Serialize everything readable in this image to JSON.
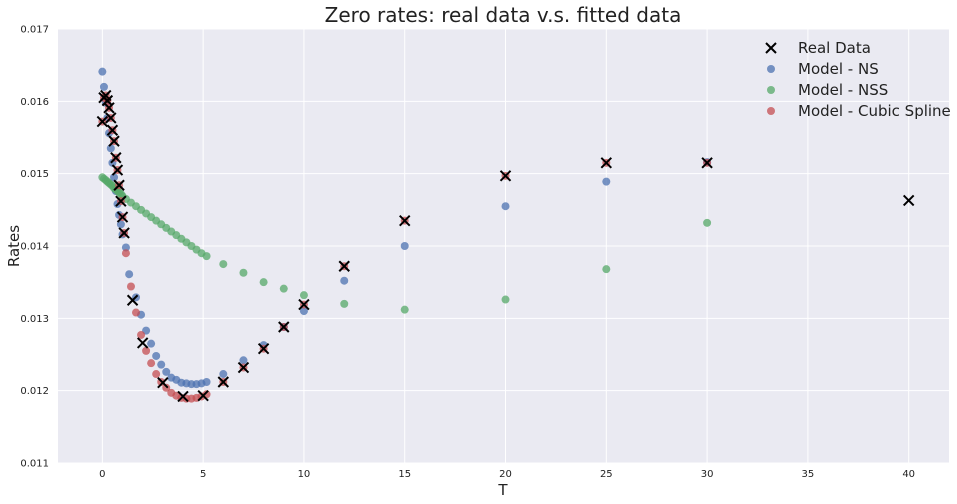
{
  "chart_data": {
    "type": "scatter",
    "title": "Zero rates: real data v.s. fitted data",
    "xlabel": "T",
    "ylabel": "Rates",
    "xlim": [
      -2.2,
      42
    ],
    "ylim": [
      0.011,
      0.017
    ],
    "xticks": [
      0,
      5,
      10,
      15,
      20,
      25,
      30,
      35,
      40
    ],
    "xtick_labels": [
      "0",
      "5",
      "10",
      "15",
      "20",
      "25",
      "30",
      "35",
      "40"
    ],
    "yticks": [
      0.011,
      0.012,
      0.013,
      0.014,
      0.015,
      0.016,
      0.017
    ],
    "ytick_labels": [
      "0.011",
      "0.012",
      "0.013",
      "0.014",
      "0.015",
      "0.016",
      "0.017"
    ],
    "grid": true,
    "legend_position": "top-right",
    "series": [
      {
        "name": "Real Data",
        "marker": "x",
        "color": "#000000",
        "points": [
          [
            0.0,
            0.01572
          ],
          [
            0.08,
            0.01605
          ],
          [
            0.17,
            0.01608
          ],
          [
            0.25,
            0.01601
          ],
          [
            0.33,
            0.01591
          ],
          [
            0.42,
            0.01577
          ],
          [
            0.5,
            0.0156
          ],
          [
            0.58,
            0.01545
          ],
          [
            0.67,
            0.01522
          ],
          [
            0.75,
            0.01505
          ],
          [
            0.83,
            0.01484
          ],
          [
            0.92,
            0.01462
          ],
          [
            1.0,
            0.0144
          ],
          [
            1.08,
            0.01418
          ],
          [
            1.5,
            0.01325
          ],
          [
            2.0,
            0.01266
          ],
          [
            3.0,
            0.01211
          ],
          [
            4.0,
            0.01192
          ],
          [
            5.0,
            0.01193
          ],
          [
            6.0,
            0.01212
          ],
          [
            7.0,
            0.01232
          ],
          [
            8.0,
            0.01258
          ],
          [
            9.0,
            0.01288
          ],
          [
            10.0,
            0.01319
          ],
          [
            12.0,
            0.01372
          ],
          [
            15.0,
            0.01435
          ],
          [
            20.0,
            0.01497
          ],
          [
            25.0,
            0.01515
          ],
          [
            30.0,
            0.01515
          ],
          [
            40.0,
            0.01463
          ]
        ]
      },
      {
        "name": "Model - NS",
        "marker": "o",
        "color": "#4c72b0",
        "points": [
          [
            0.0,
            0.01641
          ],
          [
            0.08,
            0.0162
          ],
          [
            0.17,
            0.01598
          ],
          [
            0.25,
            0.01577
          ],
          [
            0.33,
            0.01556
          ],
          [
            0.42,
            0.01535
          ],
          [
            0.5,
            0.01515
          ],
          [
            0.58,
            0.01495
          ],
          [
            0.67,
            0.01476
          ],
          [
            0.75,
            0.01458
          ],
          [
            0.83,
            0.01443
          ],
          [
            0.92,
            0.0143
          ],
          [
            1.0,
            0.01416
          ],
          [
            1.17,
            0.01398
          ],
          [
            1.33,
            0.01361
          ],
          [
            1.67,
            0.01329
          ],
          [
            1.92,
            0.01305
          ],
          [
            2.17,
            0.01283
          ],
          [
            2.42,
            0.01265
          ],
          [
            2.67,
            0.01248
          ],
          [
            2.92,
            0.01236
          ],
          [
            3.17,
            0.01226
          ],
          [
            3.42,
            0.01218
          ],
          [
            3.67,
            0.01215
          ],
          [
            3.92,
            0.01211
          ],
          [
            4.17,
            0.0121
          ],
          [
            4.42,
            0.01209
          ],
          [
            4.67,
            0.01209
          ],
          [
            4.92,
            0.0121
          ],
          [
            5.17,
            0.01212
          ],
          [
            6.0,
            0.01223
          ],
          [
            7.0,
            0.01242
          ],
          [
            8.0,
            0.01263
          ],
          [
            9.0,
            0.01288
          ],
          [
            10.0,
            0.0131
          ],
          [
            12.0,
            0.01352
          ],
          [
            15.0,
            0.014
          ],
          [
            20.0,
            0.01455
          ],
          [
            25.0,
            0.01489
          ],
          [
            30.0,
            0.01516
          ]
        ]
      },
      {
        "name": "Model - NSS",
        "marker": "o",
        "color": "#55a868",
        "points": [
          [
            0.0,
            0.01495
          ],
          [
            0.08,
            0.01493
          ],
          [
            0.17,
            0.01491
          ],
          [
            0.25,
            0.01489
          ],
          [
            0.33,
            0.01487
          ],
          [
            0.42,
            0.01485
          ],
          [
            0.5,
            0.01483
          ],
          [
            0.58,
            0.0148
          ],
          [
            0.67,
            0.01478
          ],
          [
            0.75,
            0.01476
          ],
          [
            0.83,
            0.01474
          ],
          [
            0.92,
            0.01472
          ],
          [
            1.0,
            0.01469
          ],
          [
            1.17,
            0.01465
          ],
          [
            1.42,
            0.0146
          ],
          [
            1.67,
            0.01455
          ],
          [
            1.92,
            0.0145
          ],
          [
            2.17,
            0.01445
          ],
          [
            2.42,
            0.0144
          ],
          [
            2.67,
            0.01435
          ],
          [
            2.92,
            0.0143
          ],
          [
            3.17,
            0.01425
          ],
          [
            3.42,
            0.0142
          ],
          [
            3.67,
            0.01415
          ],
          [
            3.92,
            0.0141
          ],
          [
            4.17,
            0.01405
          ],
          [
            4.42,
            0.014
          ],
          [
            4.67,
            0.01395
          ],
          [
            4.92,
            0.0139
          ],
          [
            5.17,
            0.01386
          ],
          [
            6.0,
            0.01375
          ],
          [
            7.0,
            0.01363
          ],
          [
            8.0,
            0.0135
          ],
          [
            9.0,
            0.01341
          ],
          [
            10.0,
            0.01332
          ],
          [
            12.0,
            0.0132
          ],
          [
            15.0,
            0.01312
          ],
          [
            20.0,
            0.01326
          ],
          [
            25.0,
            0.01368
          ],
          [
            30.0,
            0.01432
          ]
        ]
      },
      {
        "name": "Model - Cubic Spline",
        "marker": "o",
        "color": "#c44e52",
        "points": [
          [
            0.0,
            0.01572
          ],
          [
            0.08,
            0.01605
          ],
          [
            0.17,
            0.01608
          ],
          [
            0.25,
            0.01601
          ],
          [
            0.33,
            0.01591
          ],
          [
            0.42,
            0.01577
          ],
          [
            0.5,
            0.0156
          ],
          [
            0.58,
            0.01545
          ],
          [
            0.67,
            0.01522
          ],
          [
            0.75,
            0.01505
          ],
          [
            0.83,
            0.01484
          ],
          [
            0.92,
            0.01462
          ],
          [
            1.0,
            0.0144
          ],
          [
            1.08,
            0.01418
          ],
          [
            1.17,
            0.0139
          ],
          [
            1.42,
            0.01344
          ],
          [
            1.67,
            0.01308
          ],
          [
            1.92,
            0.01277
          ],
          [
            2.17,
            0.01255
          ],
          [
            2.42,
            0.01238
          ],
          [
            2.67,
            0.01223
          ],
          [
            2.92,
            0.01212
          ],
          [
            3.17,
            0.01204
          ],
          [
            3.42,
            0.01197
          ],
          [
            3.67,
            0.01193
          ],
          [
            3.92,
            0.0119
          ],
          [
            4.17,
            0.01189
          ],
          [
            4.42,
            0.01189
          ],
          [
            4.67,
            0.0119
          ],
          [
            4.92,
            0.01192
          ],
          [
            5.17,
            0.01195
          ],
          [
            6.0,
            0.01212
          ],
          [
            7.0,
            0.01232
          ],
          [
            8.0,
            0.01258
          ],
          [
            9.0,
            0.01288
          ],
          [
            10.0,
            0.01319
          ],
          [
            12.0,
            0.01372
          ],
          [
            15.0,
            0.01435
          ],
          [
            20.0,
            0.01497
          ],
          [
            25.0,
            0.01515
          ],
          [
            30.0,
            0.01515
          ]
        ]
      }
    ]
  }
}
